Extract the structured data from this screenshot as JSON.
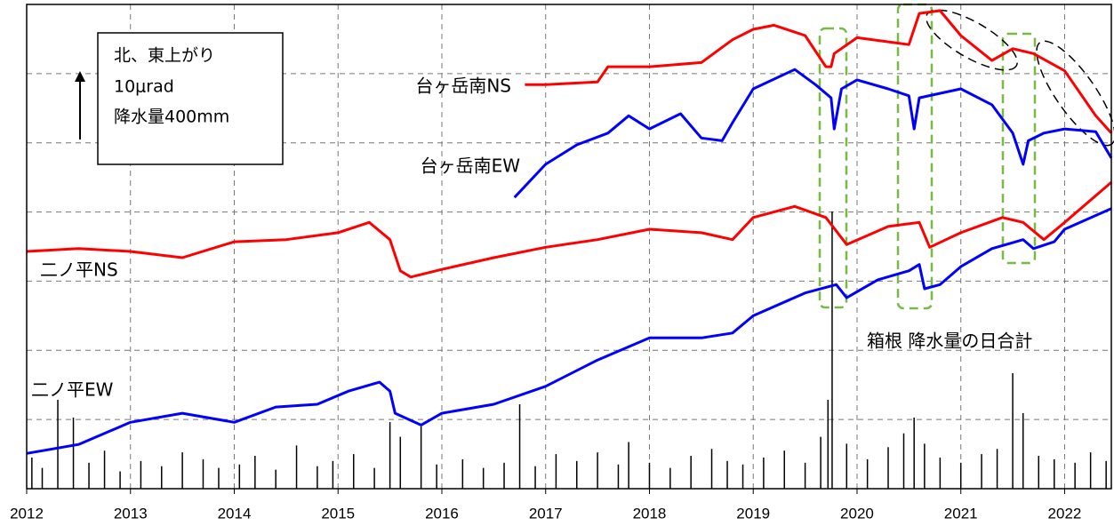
{
  "chart_data": {
    "type": "line",
    "xlim": [
      2012,
      2022.45
    ],
    "xticks": [
      2012,
      2013,
      2014,
      2015,
      2016,
      2017,
      2018,
      2019,
      2020,
      2021,
      2022
    ],
    "ylim": [
      0,
      70
    ],
    "yticks": [
      0,
      10,
      20,
      30,
      40,
      50,
      60,
      70
    ],
    "y2lim": [
      0,
      2800
    ],
    "grid": true,
    "annotations": [
      "北、東上がり",
      "10μrad",
      "降水量400mm"
    ],
    "series": [
      {
        "name": "台ヶ岳南NS",
        "color": "#ff0000",
        "x": [
          2016.8,
          2017,
          2017.5,
          2017.6,
          2018,
          2018.5,
          2018.8,
          2019,
          2019.2,
          2019.5,
          2019.7,
          2019.75,
          2019.78,
          2020,
          2020.5,
          2020.6,
          2020.8,
          2021,
          2021.3,
          2021.5,
          2021.7,
          2022,
          2022.3,
          2022.45
        ],
        "values": [
          58.4,
          58.4,
          58.8,
          61.0,
          61.0,
          61.6,
          64.9,
          66.4,
          67.0,
          65.5,
          61.0,
          61.0,
          62.9,
          65.2,
          64.2,
          68.7,
          69.1,
          65.5,
          61.9,
          63.6,
          62.9,
          60.4,
          53.9,
          51.4
        ]
      },
      {
        "name": "台ヶ岳南EW",
        "color": "#0000ff",
        "x": [
          2016.7,
          2017,
          2017.3,
          2017.6,
          2017.8,
          2018,
          2018.3,
          2018.5,
          2018.7,
          2018.8,
          2019,
          2019.4,
          2019.6,
          2019.75,
          2019.78,
          2019.85,
          2020,
          2020.3,
          2020.5,
          2020.55,
          2020.6,
          2021,
          2021.3,
          2021.5,
          2021.6,
          2021.65,
          2021.8,
          2022,
          2022.3,
          2022.45
        ],
        "values": [
          42.1,
          46.9,
          49.7,
          51.4,
          53.9,
          52.0,
          54.2,
          50.7,
          50.3,
          52.9,
          57.8,
          60.6,
          58.4,
          56.5,
          52.0,
          57.8,
          59.1,
          57.8,
          56.8,
          52.0,
          56.5,
          57.8,
          55.5,
          51.4,
          46.9,
          50.3,
          51.4,
          52.0,
          51.6,
          47.8
        ]
      },
      {
        "name": "二ノ平NS",
        "color": "#ff0000",
        "x": [
          2012,
          2012.5,
          2013,
          2013.5,
          2014,
          2014.5,
          2015,
          2015.3,
          2015.5,
          2015.6,
          2015.7,
          2016,
          2016.5,
          2017,
          2017.5,
          2018,
          2018.5,
          2018.8,
          2019,
          2019.4,
          2019.7,
          2019.9,
          2020.3,
          2020.6,
          2020.7,
          2021,
          2021.4,
          2021.6,
          2021.8,
          2022,
          2022.45
        ],
        "values": [
          34.3,
          34.7,
          34.3,
          33.4,
          35.7,
          36.0,
          37.0,
          38.5,
          36.0,
          31.5,
          30.6,
          31.7,
          33.4,
          34.9,
          36.0,
          37.5,
          37.0,
          36.0,
          39.2,
          40.8,
          39.2,
          35.3,
          37.9,
          38.5,
          34.9,
          37.0,
          39.2,
          38.5,
          36.0,
          38.5,
          44.3
        ]
      },
      {
        "name": "二ノ平EW",
        "color": "#0000ff",
        "x": [
          2012,
          2012.5,
          2013,
          2013.5,
          2014,
          2014.4,
          2014.8,
          2015.1,
          2015.4,
          2015.5,
          2015.55,
          2015.8,
          2016,
          2016.5,
          2017,
          2017.5,
          2018,
          2018.5,
          2018.8,
          2019,
          2019.5,
          2019.8,
          2019.9,
          2020.2,
          2020.5,
          2020.6,
          2020.65,
          2020.8,
          2021,
          2021.3,
          2021.6,
          2021.7,
          2021.9,
          2022,
          2022.45
        ],
        "values": [
          5.1,
          6.4,
          9.6,
          10.9,
          9.6,
          11.8,
          12.2,
          14.1,
          15.4,
          14.1,
          10.9,
          9.2,
          10.9,
          12.2,
          14.8,
          18.6,
          21.8,
          21.8,
          22.5,
          25.0,
          28.3,
          29.5,
          27.6,
          30.2,
          31.5,
          32.4,
          28.9,
          29.5,
          32.1,
          34.7,
          36.0,
          34.7,
          35.7,
          37.5,
          40.5
        ]
      }
    ],
    "precipitation": {
      "name": "箱根 降水量の日合計",
      "color": "#000000",
      "axis": "y2",
      "x": [
        2012.05,
        2012.15,
        2012.3,
        2012.45,
        2012.6,
        2012.75,
        2012.9,
        2013.1,
        2013.3,
        2013.5,
        2013.7,
        2013.85,
        2014.05,
        2014.2,
        2014.4,
        2014.6,
        2014.8,
        2014.95,
        2015.15,
        2015.35,
        2015.5,
        2015.6,
        2015.8,
        2015.95,
        2016.2,
        2016.4,
        2016.6,
        2016.75,
        2016.9,
        2017.1,
        2017.3,
        2017.5,
        2017.7,
        2017.8,
        2018.0,
        2018.2,
        2018.4,
        2018.6,
        2018.75,
        2018.9,
        2019.1,
        2019.3,
        2019.5,
        2019.65,
        2019.72,
        2019.76,
        2019.9,
        2020.1,
        2020.3,
        2020.45,
        2020.55,
        2020.65,
        2020.8,
        2021.0,
        2021.2,
        2021.35,
        2021.5,
        2021.6,
        2021.75,
        2021.9,
        2022.1,
        2022.25,
        2022.4
      ],
      "values": [
        180,
        120,
        514,
        411,
        150,
        220,
        100,
        160,
        130,
        210,
        170,
        120,
        140,
        190,
        110,
        250,
        130,
        160,
        200,
        120,
        385,
        300,
        360,
        140,
        170,
        120,
        150,
        488,
        130,
        200,
        160,
        210,
        140,
        270,
        150,
        120,
        190,
        230,
        160,
        140,
        180,
        220,
        150,
        300,
        514,
        1603,
        260,
        170,
        240,
        320,
        411,
        260,
        180,
        150,
        200,
        230,
        668,
        437,
        190,
        170,
        150,
        210,
        160
      ]
    }
  }
}
